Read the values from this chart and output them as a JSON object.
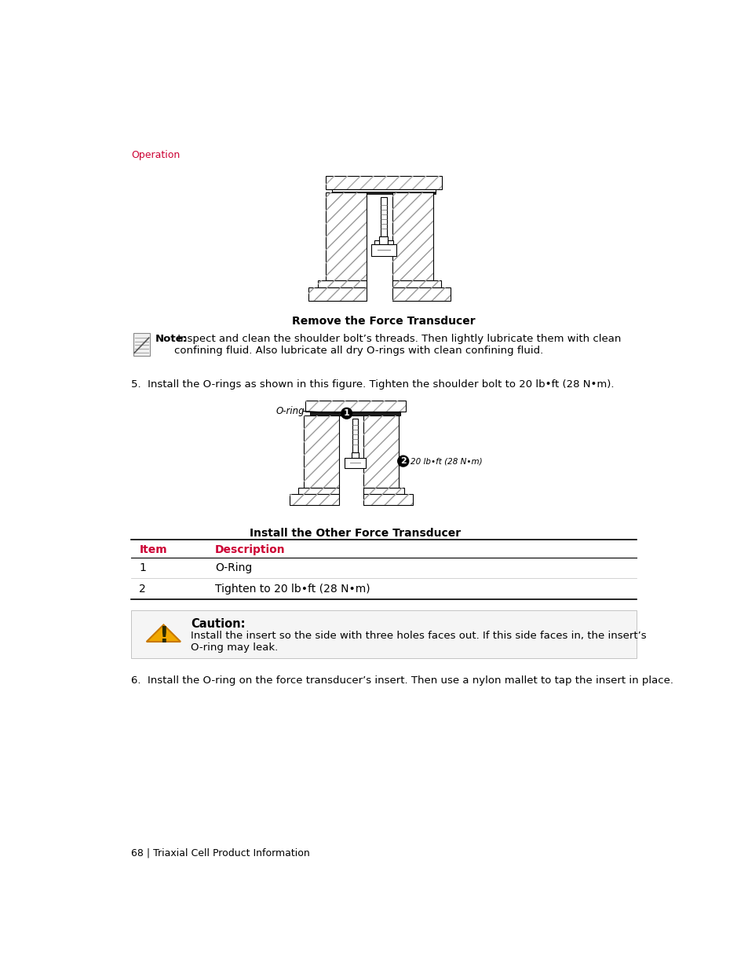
{
  "page_header": "Operation",
  "header_color": "#cc0033",
  "bg_color": "#ffffff",
  "fig1_caption": "Remove the Force Transducer",
  "note_bold": "Note:",
  "note_text": " Inspect and clean the shoulder bolt’s threads. Then lightly lubricate them with clean\nconfining fluid. Also lubricate all dry O-rings with clean confining fluid.",
  "step5_text": "5.  Install the O-rings as shown in this figure. Tighten the shoulder bolt to 20 lb•ft (28 N•m).",
  "fig2_caption": "Install the Other Force Transducer",
  "table_header_item": "Item",
  "table_header_desc": "Description",
  "table_header_color": "#cc0033",
  "table_row1_item": "1",
  "table_row1_desc": "O-Ring",
  "table_row2_item": "2",
  "table_row2_desc": "Tighten to 20 lb•ft (28 N•m)",
  "caution_title": "Caution:",
  "caution_text": "Install the insert so the side with three holes faces out. If this side faces in, the insert’s\nO-ring may leak.",
  "step6_text": "6.  Install the O-ring on the force transducer’s insert. Then use a nylon mallet to tap the insert in place.",
  "footer_text": "68 | Triaxial Cell Product Information",
  "label_oring": "O-ring",
  "label_torque": "20 lb•ft (28 N•m)"
}
